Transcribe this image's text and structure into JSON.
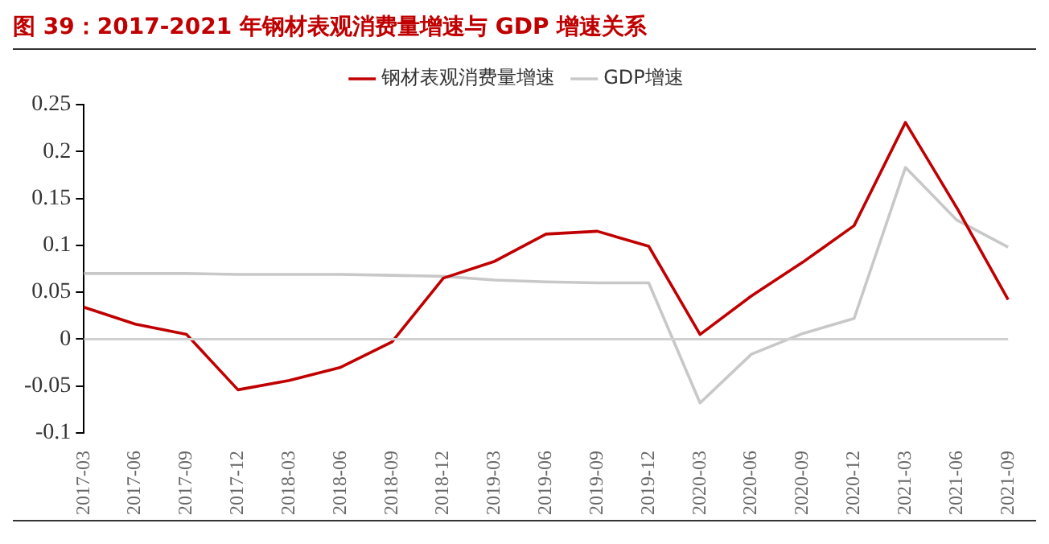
{
  "chart_data": {
    "type": "line",
    "title": "图 39：2017-2021 年钢材表观消费量增速与 GDP 增速关系",
    "categories": [
      "2017-03",
      "2017-06",
      "2017-09",
      "2017-12",
      "2018-03",
      "2018-06",
      "2018-09",
      "2018-12",
      "2019-03",
      "2019-06",
      "2019-09",
      "2019-12",
      "2020-03",
      "2020-06",
      "2020-09",
      "2020-12",
      "2021-03",
      "2021-06",
      "2021-09"
    ],
    "series": [
      {
        "name": "钢材表观消费量增速",
        "color": "#c00000",
        "values": [
          0.034,
          0.016,
          0.005,
          -0.054,
          -0.044,
          -0.03,
          -0.003,
          0.065,
          0.083,
          0.112,
          0.115,
          0.099,
          0.005,
          0.046,
          0.082,
          0.121,
          0.231,
          0.14,
          0.042
        ]
      },
      {
        "name": "GDP增速",
        "color": "#c8c8c8",
        "values": [
          0.07,
          0.07,
          0.07,
          0.069,
          0.069,
          0.069,
          0.068,
          0.067,
          0.063,
          0.061,
          0.06,
          0.06,
          -0.068,
          -0.016,
          0.006,
          0.022,
          0.183,
          0.127,
          0.098
        ]
      }
    ],
    "ylim": [
      -0.1,
      0.25
    ],
    "yticks": [
      -0.1,
      -0.05,
      0,
      0.05,
      0.1,
      0.15,
      0.2,
      0.25
    ],
    "ref_lines": [
      {
        "axis": "y",
        "value": 0,
        "color": "#d0d0d0",
        "line_style": "solid"
      }
    ],
    "grid": false,
    "legend": "top",
    "marker": "none",
    "line_style": "solid"
  }
}
